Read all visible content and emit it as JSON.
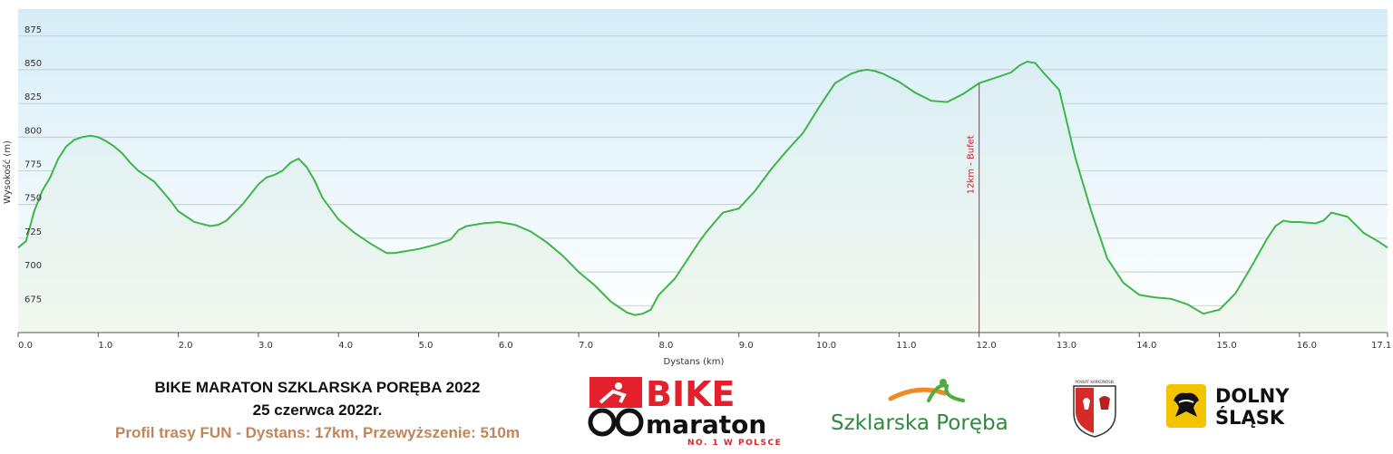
{
  "colors": {
    "line": "#3fb54c",
    "fill_top": "#dbeef5",
    "fill_bottom": "#f1f8ee",
    "plot_bg_top": "#d6edf7",
    "plot_bg_bottom": "#ffffff",
    "annotation": "#cc2233",
    "subtitle_color": "#c0855b",
    "bike_red": "#e3202b"
  },
  "footer": {
    "line1": "BIKE MARATON SZKLARSKA PORĘBA 2022",
    "line2": "25 czerwca 2022r.",
    "line3": "Profil trasy FUN - Dystans: 17km, Przewyższenie: 510m"
  },
  "logos": {
    "bike_word": "BIKE",
    "maraton_word": "maraton",
    "tagline": "NO. 1 W POLSCE",
    "city": "Szklarska Poręba",
    "coat_caption": "POWIAT KARKONOSKI",
    "region_line1": "DOLNY",
    "region_line2": "ŚLĄSK"
  },
  "chart_data": {
    "type": "area",
    "xlabel": "Dystans (km)",
    "ylabel": "Wysokość (m)",
    "xlim": [
      0,
      17.1
    ],
    "ylim": [
      655,
      895
    ],
    "x_ticks": [
      "0.0",
      "1.0",
      "2.0",
      "3.0",
      "4.0",
      "5.0",
      "6.0",
      "7.0",
      "8.0",
      "9.0",
      "10.0",
      "11.0",
      "12.0",
      "13.0",
      "14.0",
      "15.0",
      "16.0",
      "17.1"
    ],
    "x_tick_values": [
      0,
      1,
      2,
      3,
      4,
      5,
      6,
      7,
      8,
      9,
      10,
      11,
      12,
      13,
      14,
      15,
      16,
      17.1
    ],
    "y_ticks": [
      675,
      700,
      725,
      750,
      775,
      800,
      825,
      850,
      875
    ],
    "grid": true,
    "annotation": {
      "x": 12.0,
      "text": "12km - Bufet"
    },
    "x": [
      0,
      0.1,
      0.2,
      0.3,
      0.4,
      0.5,
      0.6,
      0.7,
      0.8,
      0.9,
      1.0,
      1.1,
      1.2,
      1.3,
      1.4,
      1.5,
      1.6,
      1.7,
      1.8,
      1.9,
      2.0,
      2.2,
      2.4,
      2.5,
      2.6,
      2.8,
      3.0,
      3.1,
      3.2,
      3.3,
      3.4,
      3.5,
      3.6,
      3.7,
      3.8,
      4.0,
      4.2,
      4.4,
      4.6,
      4.7,
      4.8,
      5.0,
      5.2,
      5.4,
      5.5,
      5.6,
      5.8,
      6.0,
      6.2,
      6.4,
      6.6,
      6.8,
      7.0,
      7.2,
      7.4,
      7.6,
      7.7,
      7.8,
      7.9,
      8.0,
      8.2,
      8.4,
      8.5,
      8.6,
      8.7,
      8.8,
      9.0,
      9.2,
      9.4,
      9.6,
      9.8,
      10.0,
      10.2,
      10.4,
      10.5,
      10.6,
      10.7,
      10.8,
      11.0,
      11.2,
      11.4,
      11.6,
      11.8,
      12.0,
      12.2,
      12.4,
      12.5,
      12.6,
      12.7,
      12.8,
      13.0,
      13.2,
      13.4,
      13.6,
      13.8,
      14.0,
      14.2,
      14.4,
      14.6,
      14.8,
      15.0,
      15.2,
      15.4,
      15.6,
      15.7,
      15.8,
      15.9,
      16.0,
      16.2,
      16.3,
      16.4,
      16.6,
      16.8,
      17.0,
      17.1
    ],
    "values": [
      718,
      723,
      745,
      760,
      770,
      784,
      793,
      798,
      800,
      801,
      800,
      797,
      793,
      788,
      781,
      775,
      771,
      767,
      760,
      753,
      745,
      737,
      734,
      735,
      738,
      750,
      765,
      770,
      772,
      775,
      781,
      784,
      778,
      768,
      755,
      739,
      729,
      721,
      714,
      714,
      715,
      717,
      720,
      724,
      731,
      734,
      736,
      737,
      735,
      730,
      722,
      712,
      700,
      690,
      678,
      670,
      668,
      669,
      672,
      683,
      695,
      713,
      722,
      730,
      737,
      744,
      747,
      760,
      776,
      790,
      803,
      822,
      840,
      847,
      849,
      850,
      849,
      847,
      841,
      833,
      827,
      826,
      832,
      840,
      844,
      848,
      853,
      856,
      855,
      848,
      835,
      785,
      745,
      710,
      692,
      683,
      681,
      680,
      676,
      669,
      672,
      684,
      704,
      725,
      734,
      738,
      737,
      737,
      736,
      738,
      744,
      741,
      729,
      722,
      718
    ]
  }
}
